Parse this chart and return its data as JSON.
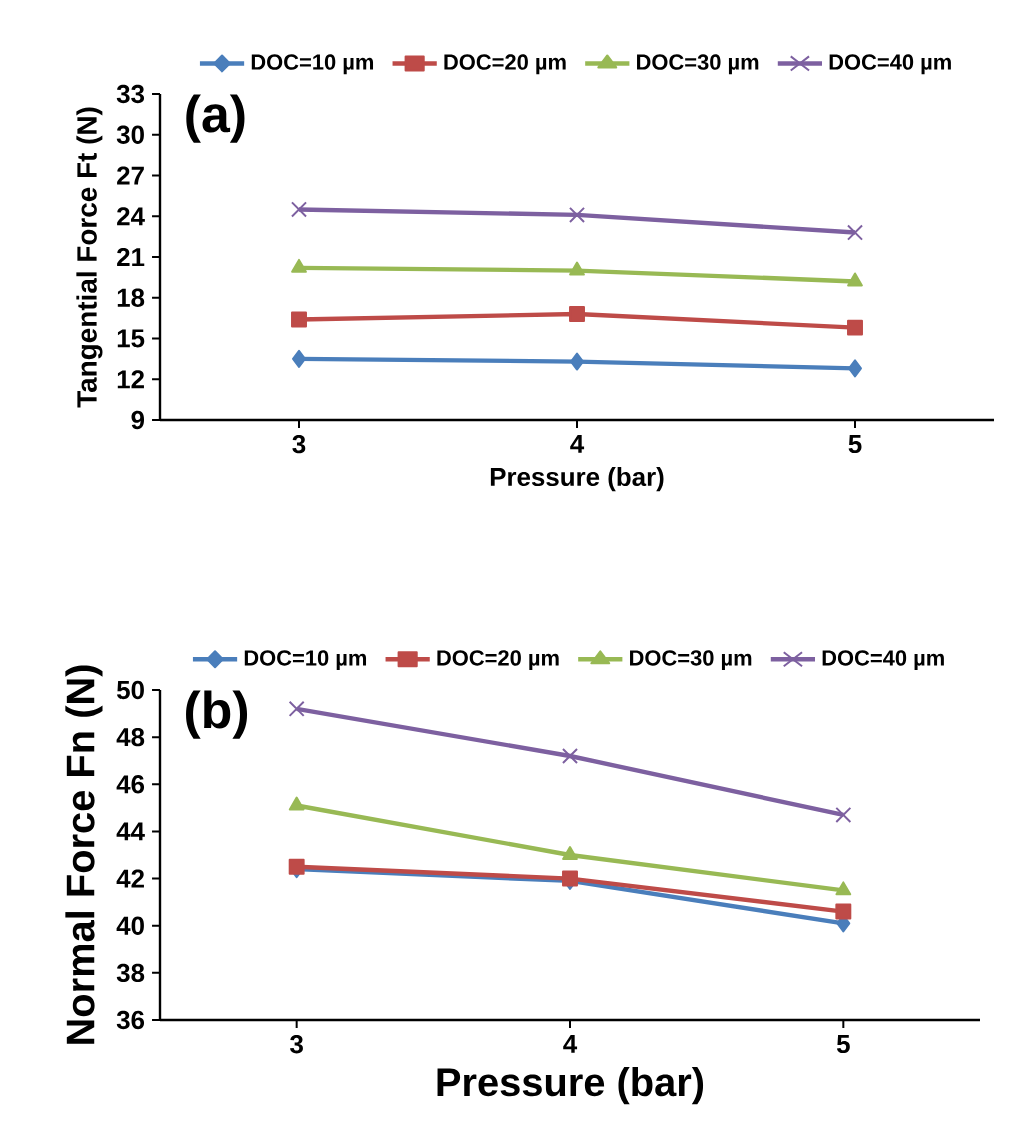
{
  "chart_data": [
    {
      "type": "line",
      "annotations": [
        "(a)"
      ],
      "xlabel": "Pressure (bar)",
      "ylabel": "Tangential Force  Ft (N)",
      "categories": [
        "3",
        "4",
        "5"
      ],
      "ylim": [
        9,
        33
      ],
      "yticks": [
        9,
        12,
        15,
        18,
        21,
        24,
        27,
        30,
        33
      ],
      "legend": "top",
      "series": [
        {
          "name": "DOC=10 µm",
          "color": "#4a7ebb",
          "marker": "diamond",
          "values": [
            13.5,
            13.3,
            12.8
          ]
        },
        {
          "name": "DOC=20 µm",
          "color": "#be4b48",
          "marker": "square",
          "values": [
            16.4,
            16.8,
            15.8
          ]
        },
        {
          "name": "DOC=30 µm",
          "color": "#98b954",
          "marker": "triangle",
          "values": [
            20.2,
            20.0,
            19.2
          ]
        },
        {
          "name": "DOC=40 µm",
          "color": "#7d60a0",
          "marker": "cross",
          "values": [
            24.5,
            24.1,
            22.8
          ]
        }
      ]
    },
    {
      "type": "line",
      "annotations": [
        "(b)"
      ],
      "xlabel": "Pressure (bar)",
      "ylabel": "Normal Force  Fn (N)",
      "categories": [
        "3",
        "4",
        "5"
      ],
      "ylim": [
        36,
        50
      ],
      "yticks": [
        36,
        38,
        40,
        42,
        44,
        46,
        48,
        50
      ],
      "legend": "top",
      "series": [
        {
          "name": "DOC=10 µm",
          "color": "#4a7ebb",
          "marker": "diamond",
          "values": [
            42.4,
            41.9,
            40.1
          ]
        },
        {
          "name": "DOC=20 µm",
          "color": "#be4b48",
          "marker": "square",
          "values": [
            42.5,
            42.0,
            40.6
          ]
        },
        {
          "name": "DOC=30 µm",
          "color": "#98b954",
          "marker": "triangle",
          "values": [
            45.1,
            43.0,
            41.5
          ]
        },
        {
          "name": "DOC=40 µm",
          "color": "#7d60a0",
          "marker": "cross",
          "values": [
            49.2,
            47.2,
            44.7
          ]
        }
      ]
    }
  ]
}
